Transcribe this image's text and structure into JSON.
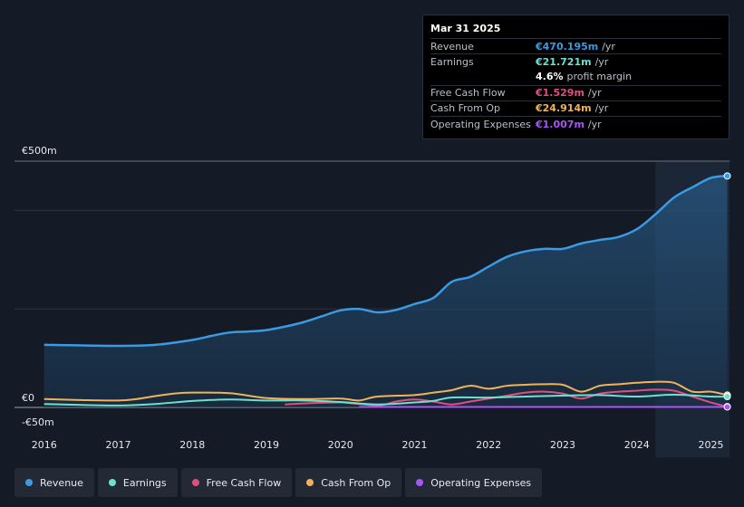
{
  "tooltip": {
    "date": "Mar 31 2025",
    "rows": [
      {
        "label": "Revenue",
        "value": "€470.195m",
        "unit": "/yr",
        "color": "#3b9ae1"
      },
      {
        "label": "Earnings",
        "value": "€21.721m",
        "unit": "/yr",
        "color": "#6fe0d0"
      },
      {
        "label": "",
        "value": "4.6%",
        "unit": "profit margin",
        "color": "#ffffff"
      },
      {
        "label": "Free Cash Flow",
        "value": "€1.529m",
        "unit": "/yr",
        "color": "#e0507f"
      },
      {
        "label": "Cash From Op",
        "value": "€24.914m",
        "unit": "/yr",
        "color": "#f0b35a"
      },
      {
        "label": "Operating Expenses",
        "value": "€1.007m",
        "unit": "/yr",
        "color": "#a855f7"
      }
    ]
  },
  "legend": [
    {
      "label": "Revenue",
      "color": "#3b9ae1"
    },
    {
      "label": "Earnings",
      "color": "#6fe0d0"
    },
    {
      "label": "Free Cash Flow",
      "color": "#e0507f"
    },
    {
      "label": "Cash From Op",
      "color": "#f0b35a"
    },
    {
      "label": "Operating Expenses",
      "color": "#a855f7"
    }
  ],
  "chart_data": {
    "type": "area",
    "title": "",
    "xlabel": "",
    "ylabel": "",
    "ylim": [
      -50,
      500
    ],
    "y_tick_labels": [
      "€500m",
      "€0",
      "-€50m"
    ],
    "x_tick_labels": [
      "2016",
      "2017",
      "2018",
      "2019",
      "2020",
      "2021",
      "2022",
      "2023",
      "2024",
      "2025"
    ],
    "x_ticks": [
      2016,
      2017,
      2018,
      2019,
      2020,
      2021,
      2022,
      2023,
      2024,
      2025
    ],
    "xlim": [
      2015.6,
      2025.25
    ],
    "highlight_start": 2024.25,
    "series": [
      {
        "name": "Revenue",
        "color": "#3b9ae1",
        "fill": true,
        "x": [
          2016.0,
          2016.5,
          2017.0,
          2017.5,
          2018.0,
          2018.25,
          2018.5,
          2018.75,
          2019.0,
          2019.25,
          2019.5,
          2019.75,
          2020.0,
          2020.25,
          2020.5,
          2020.75,
          2021.0,
          2021.25,
          2021.5,
          2021.75,
          2022.0,
          2022.25,
          2022.5,
          2022.75,
          2023.0,
          2023.25,
          2023.5,
          2023.75,
          2024.0,
          2024.25,
          2024.5,
          2024.75,
          2025.0,
          2025.22
        ],
        "y": [
          127,
          126,
          125,
          127,
          137,
          145,
          152,
          154,
          157,
          164,
          173,
          185,
          197,
          200,
          193,
          198,
          210,
          222,
          255,
          265,
          286,
          306,
          317,
          322,
          322,
          333,
          340,
          346,
          362,
          392,
          426,
          447,
          466,
          470
        ]
      },
      {
        "name": "Earnings",
        "color": "#6fe0d0",
        "fill": false,
        "x": [
          2016.0,
          2016.5,
          2017.0,
          2017.5,
          2018.0,
          2018.5,
          2019.0,
          2019.5,
          2020.0,
          2020.5,
          2021.0,
          2021.25,
          2021.5,
          2022.0,
          2022.5,
          2023.0,
          2023.5,
          2024.0,
          2024.5,
          2025.0,
          2025.22
        ],
        "y": [
          7,
          5,
          4,
          7,
          13,
          16,
          14,
          14,
          11,
          6,
          10,
          13,
          20,
          20,
          22,
          24,
          25,
          22,
          26,
          22,
          22
        ]
      },
      {
        "name": "Free Cash Flow",
        "color": "#e0507f",
        "fill": false,
        "x": [
          2019.25,
          2019.5,
          2020.0,
          2020.5,
          2020.75,
          2021.0,
          2021.25,
          2021.5,
          2021.75,
          2022.0,
          2022.25,
          2022.5,
          2022.75,
          2023.0,
          2023.25,
          2023.5,
          2023.75,
          2024.0,
          2024.25,
          2024.5,
          2024.75,
          2025.0,
          2025.22
        ],
        "y": [
          6,
          8,
          10,
          4,
          12,
          16,
          12,
          6,
          12,
          18,
          24,
          30,
          32,
          28,
          18,
          28,
          32,
          34,
          36,
          34,
          22,
          10,
          1.5
        ]
      },
      {
        "name": "Cash From Op",
        "color": "#f0b35a",
        "fill": false,
        "x": [
          2016.0,
          2016.5,
          2017.0,
          2017.25,
          2017.5,
          2017.75,
          2018.0,
          2018.5,
          2019.0,
          2019.5,
          2020.0,
          2020.25,
          2020.5,
          2021.0,
          2021.25,
          2021.5,
          2021.75,
          2022.0,
          2022.25,
          2022.5,
          2022.75,
          2023.0,
          2023.25,
          2023.5,
          2023.75,
          2024.0,
          2024.25,
          2024.5,
          2024.75,
          2025.0,
          2025.22
        ],
        "y": [
          17,
          15,
          14,
          17,
          23,
          28,
          30,
          29,
          19,
          17,
          18,
          14,
          22,
          25,
          30,
          35,
          44,
          38,
          44,
          46,
          47,
          46,
          32,
          44,
          47,
          50,
          52,
          50,
          32,
          32,
          25
        ]
      },
      {
        "name": "Operating Expenses",
        "color": "#a855f7",
        "fill": false,
        "x": [
          2020.25,
          2021.0,
          2022.0,
          2023.0,
          2024.0,
          2025.0,
          2025.22
        ],
        "y": [
          1,
          1,
          1,
          1,
          1,
          1,
          1
        ]
      }
    ]
  }
}
